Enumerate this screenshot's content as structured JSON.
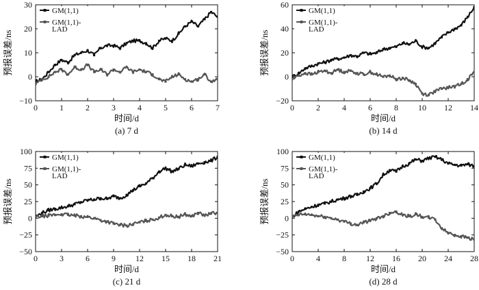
{
  "chart_data": [
    {
      "type": "line",
      "caption": "(a) 7 d",
      "xlabel": "时间/d",
      "ylabel": "预报误差/ns",
      "xlim": [
        0,
        7
      ],
      "ylim": [
        -10,
        30
      ],
      "xticks": [
        "0",
        "1",
        "2",
        "3",
        "4",
        "5",
        "6",
        "7"
      ],
      "yticks": [
        "−10",
        "0",
        "10",
        "20",
        "30"
      ],
      "series": [
        {
          "name": "GM(1,1)",
          "color": "#111111",
          "x": [
            0,
            0.25,
            0.5,
            0.75,
            1,
            1.25,
            1.5,
            1.75,
            2,
            2.25,
            2.5,
            2.75,
            3,
            3.25,
            3.5,
            3.75,
            4,
            4.25,
            4.5,
            4.75,
            5,
            5.25,
            5.5,
            5.75,
            6,
            6.25,
            6.5,
            6.75,
            7
          ],
          "y": [
            -2,
            -1,
            2,
            5,
            7,
            6,
            9,
            10,
            11,
            9,
            12,
            13,
            13,
            12,
            14,
            15,
            15,
            14,
            12,
            15,
            16,
            15,
            18,
            21,
            23,
            21,
            24,
            27,
            25
          ]
        },
        {
          "name": "GM(1,1)-\nLAD",
          "color": "#555555",
          "x": [
            0,
            0.25,
            0.5,
            0.75,
            1,
            1.25,
            1.5,
            1.75,
            2,
            2.25,
            2.5,
            2.75,
            3,
            3.25,
            3.5,
            3.75,
            4,
            4.25,
            4.5,
            4.75,
            5,
            5.25,
            5.5,
            5.75,
            6,
            6.25,
            6.5,
            6.75,
            7
          ],
          "y": [
            -3,
            -1,
            0,
            2,
            3,
            1,
            4,
            3,
            5,
            2,
            3,
            1,
            3,
            2,
            4,
            2,
            3,
            2,
            1,
            -1,
            -2,
            0,
            1,
            -1,
            -2,
            -1,
            1,
            -2,
            -1
          ]
        }
      ]
    },
    {
      "type": "line",
      "caption": "(b) 14 d",
      "xlabel": "时间/d",
      "ylabel": "预报误差/ns",
      "xlim": [
        0,
        14
      ],
      "ylim": [
        -20,
        60
      ],
      "xticks": [
        "0",
        "2",
        "4",
        "6",
        "8",
        "10",
        "12",
        "14"
      ],
      "yticks": [
        "−20",
        "0",
        "20",
        "40",
        "60"
      ],
      "series": [
        {
          "name": "GM(1,1)",
          "color": "#111111",
          "x": [
            0,
            0.5,
            1,
            1.5,
            2,
            2.5,
            3,
            3.5,
            4,
            4.5,
            5,
            5.5,
            6,
            6.5,
            7,
            7.5,
            8,
            8.5,
            9,
            9.5,
            10,
            10.5,
            11,
            11.5,
            12,
            12.5,
            13,
            13.5,
            14
          ],
          "y": [
            0,
            3,
            7,
            9,
            11,
            12,
            14,
            15,
            16,
            18,
            17,
            20,
            19,
            20,
            23,
            24,
            25,
            28,
            27,
            30,
            25,
            24,
            28,
            33,
            37,
            40,
            43,
            50,
            58
          ]
        },
        {
          "name": "GM(1,1)-\nLAD",
          "color": "#555555",
          "x": [
            0,
            0.5,
            1,
            1.5,
            2,
            2.5,
            3,
            3.5,
            4,
            4.5,
            5,
            5.5,
            6,
            6.5,
            7,
            7.5,
            8,
            8.5,
            9,
            9.5,
            10,
            10.5,
            11,
            11.5,
            12,
            12.5,
            13,
            13.5,
            14
          ],
          "y": [
            -2,
            1,
            3,
            2,
            4,
            5,
            3,
            6,
            4,
            5,
            3,
            2,
            4,
            2,
            0,
            1,
            -2,
            -1,
            -3,
            -6,
            -14,
            -15,
            -12,
            -10,
            -9,
            -8,
            -6,
            -2,
            4
          ]
        }
      ]
    },
    {
      "type": "line",
      "caption": "(c) 21 d",
      "xlabel": "时间/d",
      "ylabel": "预报误差/ns",
      "xlim": [
        0,
        21
      ],
      "ylim": [
        -50,
        100
      ],
      "xticks": [
        "0",
        "3",
        "6",
        "9",
        "12",
        "15",
        "18",
        "21"
      ],
      "yticks": [
        "−50",
        "−25",
        "0",
        "25",
        "50",
        "75",
        "100"
      ],
      "series": [
        {
          "name": "GM(1,1)",
          "color": "#111111",
          "x": [
            0,
            0.75,
            1.5,
            2.25,
            3,
            3.75,
            4.5,
            5.25,
            6,
            6.75,
            7.5,
            8.25,
            9,
            9.75,
            10.5,
            11.25,
            12,
            12.75,
            13.5,
            14.25,
            15,
            15.75,
            16.5,
            17.25,
            18,
            18.75,
            19.5,
            20.25,
            21
          ],
          "y": [
            2,
            8,
            12,
            14,
            16,
            18,
            21,
            24,
            27,
            28,
            30,
            29,
            33,
            30,
            35,
            42,
            48,
            52,
            60,
            70,
            75,
            70,
            74,
            80,
            78,
            82,
            84,
            86,
            92
          ]
        },
        {
          "name": "GM(1,1)-\nLAD",
          "color": "#555555",
          "x": [
            0,
            0.75,
            1.5,
            2.25,
            3,
            3.75,
            4.5,
            5.25,
            6,
            6.75,
            7.5,
            8.25,
            9,
            9.75,
            10.5,
            11.25,
            12,
            12.75,
            13.5,
            14.25,
            15,
            15.75,
            16.5,
            17.25,
            18,
            18.75,
            19.5,
            20.25,
            21
          ],
          "y": [
            2,
            3,
            4,
            5,
            6,
            5,
            4,
            3,
            2,
            0,
            -3,
            -5,
            -8,
            -10,
            -11,
            -9,
            -6,
            -4,
            -2,
            1,
            5,
            3,
            2,
            6,
            3,
            8,
            4,
            7,
            8
          ]
        }
      ]
    },
    {
      "type": "line",
      "caption": "(d) 28 d",
      "xlabel": "时间/d",
      "ylabel": "预报误差/ns",
      "xlim": [
        0,
        28
      ],
      "ylim": [
        -50,
        100
      ],
      "xticks": [
        "0",
        "4",
        "8",
        "12",
        "16",
        "20",
        "24",
        "28"
      ],
      "yticks": [
        "−50",
        "−25",
        "0",
        "25",
        "50",
        "75",
        "100"
      ],
      "series": [
        {
          "name": "GM(1,1)",
          "color": "#111111",
          "x": [
            0,
            1,
            2,
            3,
            4,
            5,
            6,
            7,
            8,
            9,
            10,
            11,
            12,
            13,
            14,
            15,
            16,
            17,
            18,
            19,
            20,
            21,
            22,
            23,
            24,
            25,
            26,
            27,
            28
          ],
          "y": [
            2,
            10,
            14,
            17,
            20,
            22,
            25,
            28,
            30,
            33,
            35,
            40,
            45,
            52,
            65,
            72,
            70,
            78,
            82,
            88,
            86,
            90,
            92,
            88,
            82,
            80,
            79,
            81,
            78
          ]
        },
        {
          "name": "GM(1,1)-\nLAD",
          "color": "#555555",
          "x": [
            0,
            1,
            2,
            3,
            4,
            5,
            6,
            7,
            8,
            9,
            10,
            11,
            12,
            13,
            14,
            15,
            16,
            17,
            18,
            19,
            20,
            21,
            22,
            23,
            24,
            25,
            26,
            27,
            28
          ],
          "y": [
            2,
            5,
            6,
            5,
            3,
            2,
            0,
            -2,
            -5,
            -8,
            -10,
            -6,
            -4,
            0,
            3,
            8,
            10,
            5,
            3,
            6,
            2,
            1,
            -2,
            -15,
            -22,
            -25,
            -27,
            -29,
            -32
          ]
        }
      ]
    }
  ]
}
